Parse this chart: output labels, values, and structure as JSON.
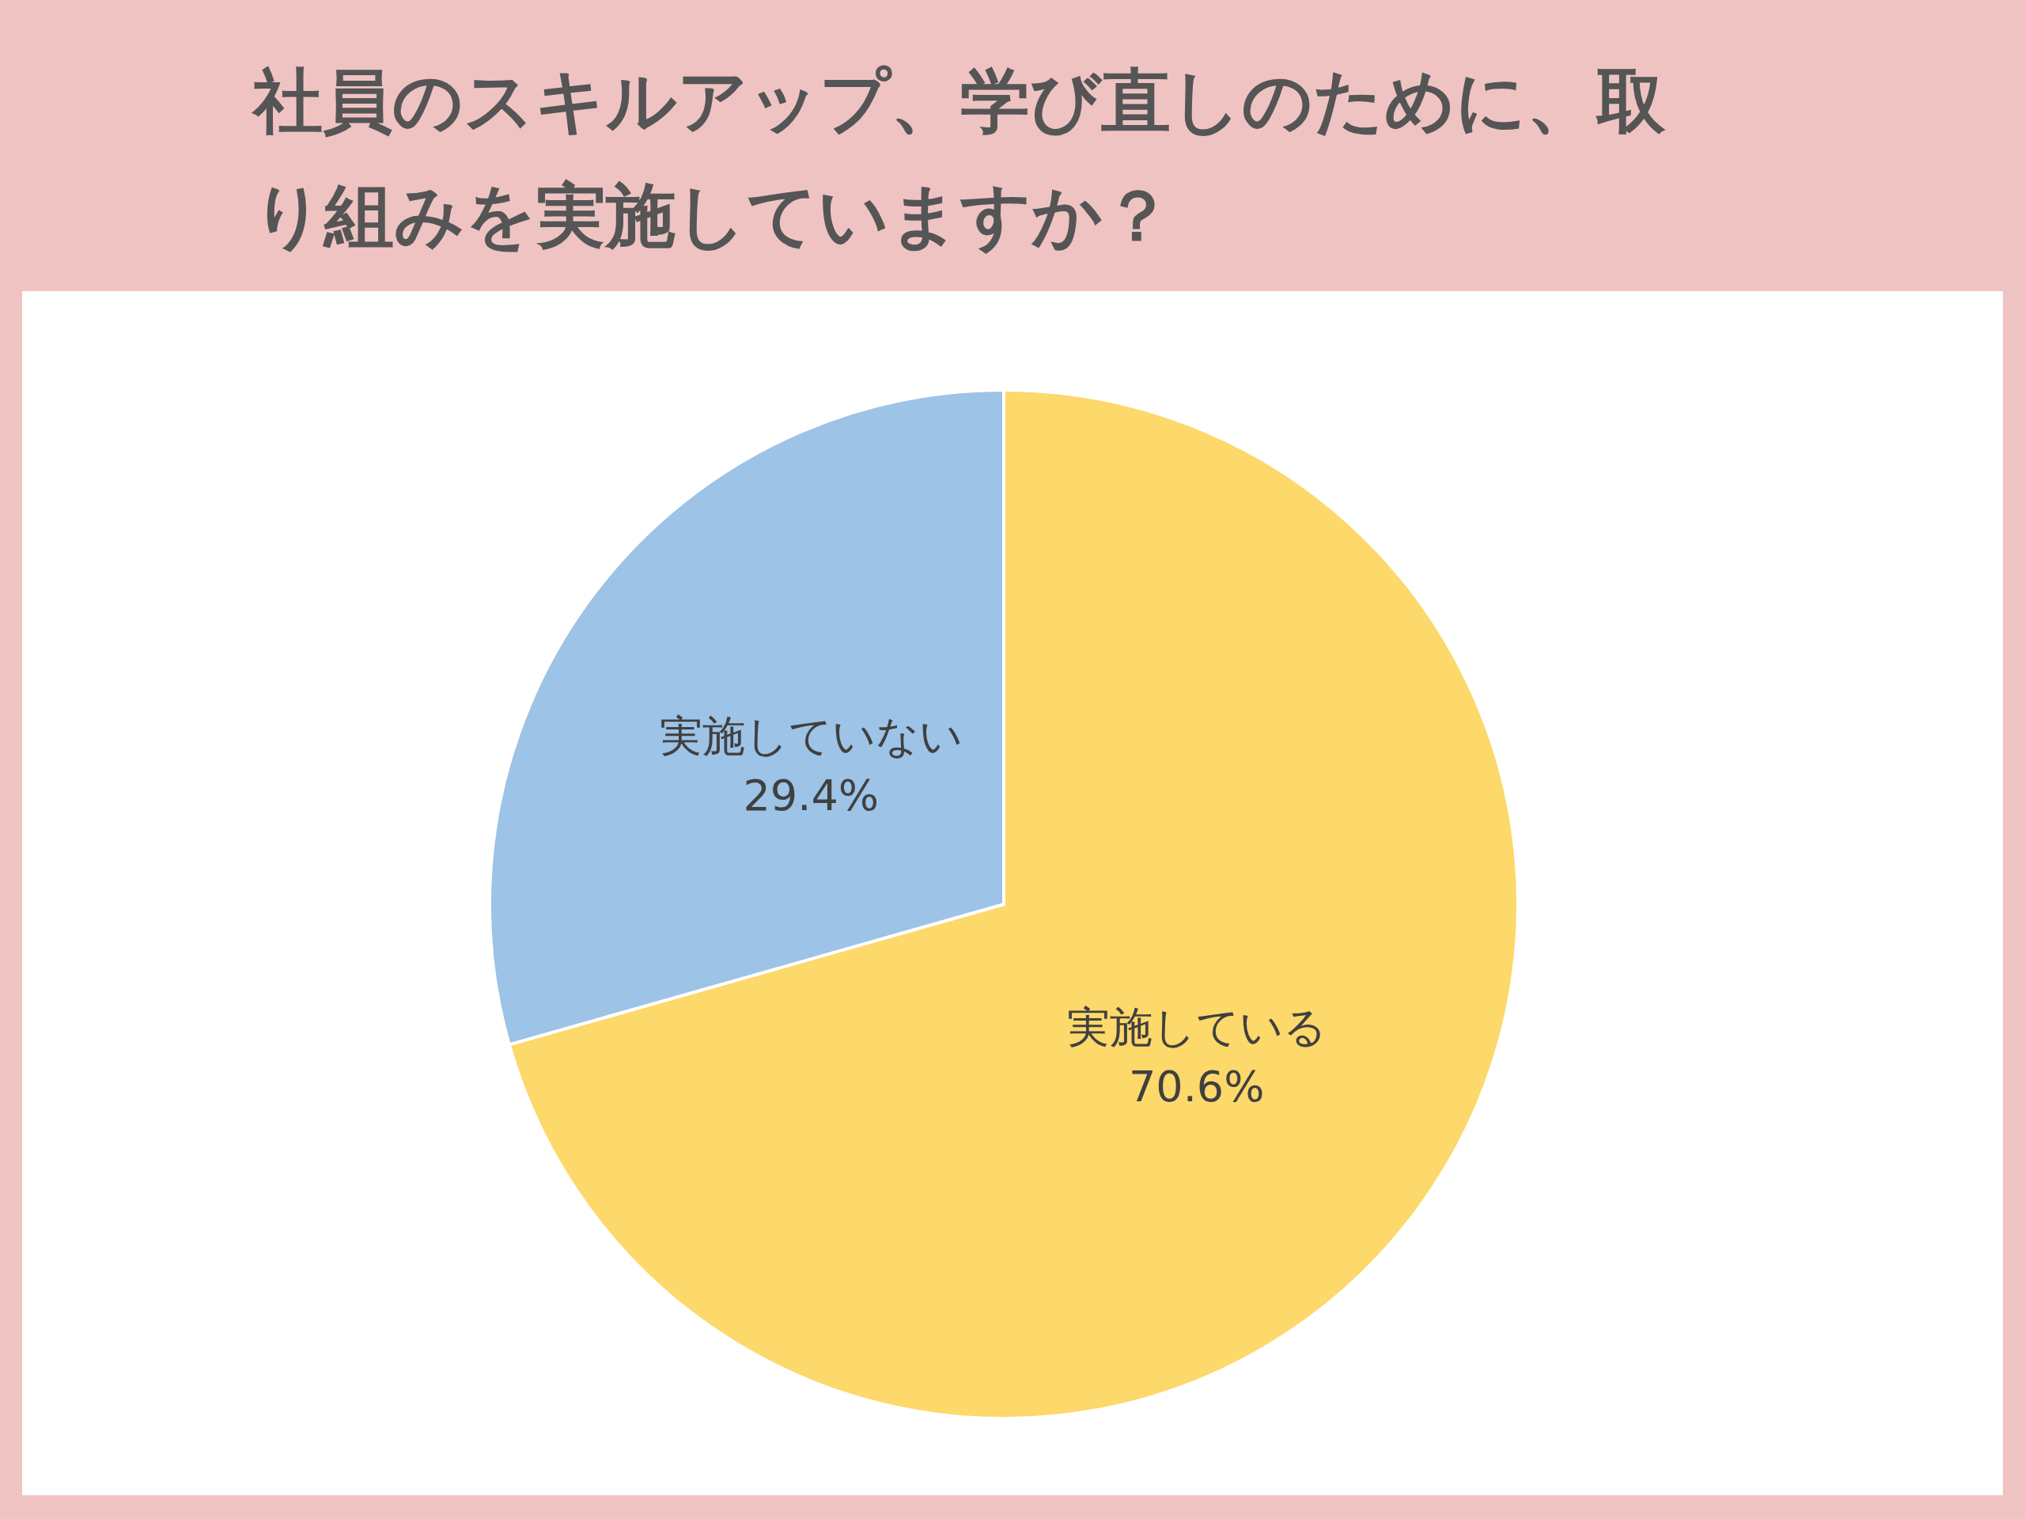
{
  "chart_data": {
    "type": "pie",
    "title": "社員のスキルアップ、学び直しのために、取り組みを実施していますか？",
    "categories": [
      "実施している",
      "実施していない"
    ],
    "values": [
      70.6,
      29.4
    ],
    "colors": [
      "#fdd86a",
      "#9dc3e6"
    ],
    "value_labels": [
      "70.6%",
      "29.4%"
    ]
  }
}
